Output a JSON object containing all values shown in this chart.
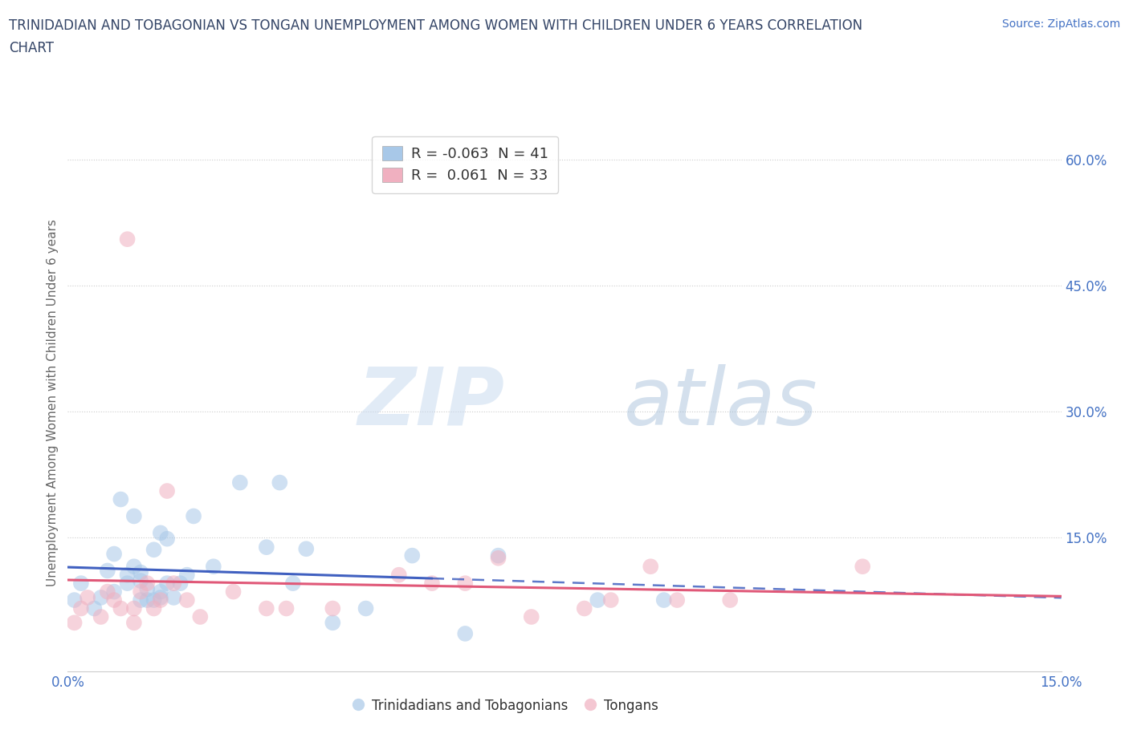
{
  "title_line1": "TRINIDADIAN AND TOBAGONIAN VS TONGAN UNEMPLOYMENT AMONG WOMEN WITH CHILDREN UNDER 6 YEARS CORRELATION",
  "title_line2": "CHART",
  "source_text": "Source: ZipAtlas.com",
  "ylabel": "Unemployment Among Women with Children Under 6 years",
  "xlim": [
    0.0,
    0.15
  ],
  "ylim": [
    -0.01,
    0.63
  ],
  "xtick_positions": [
    0.0,
    0.03,
    0.06,
    0.09,
    0.12,
    0.15
  ],
  "xtick_labels": [
    "0.0%",
    "",
    "",
    "",
    "",
    "15.0%"
  ],
  "ytick_positions": [
    0.0,
    0.15,
    0.3,
    0.45,
    0.6
  ],
  "ytick_labels": [
    "",
    "15.0%",
    "30.0%",
    "45.0%",
    "60.0%"
  ],
  "blue_scatter_color": "#a8c8e8",
  "pink_scatter_color": "#f0b0c0",
  "blue_line_color": "#4060c0",
  "pink_line_color": "#e05878",
  "R_blue": -0.063,
  "N_blue": 41,
  "R_pink": 0.061,
  "N_pink": 33,
  "blue_scatter_x": [
    0.001,
    0.002,
    0.004,
    0.005,
    0.006,
    0.007,
    0.007,
    0.008,
    0.009,
    0.009,
    0.01,
    0.01,
    0.011,
    0.011,
    0.011,
    0.012,
    0.012,
    0.013,
    0.013,
    0.014,
    0.014,
    0.014,
    0.015,
    0.015,
    0.016,
    0.017,
    0.018,
    0.019,
    0.022,
    0.026,
    0.03,
    0.032,
    0.034,
    0.036,
    0.04,
    0.045,
    0.052,
    0.06,
    0.065,
    0.08,
    0.09
  ],
  "blue_scatter_y": [
    0.075,
    0.095,
    0.065,
    0.078,
    0.11,
    0.085,
    0.13,
    0.195,
    0.095,
    0.105,
    0.115,
    0.175,
    0.075,
    0.098,
    0.108,
    0.075,
    0.088,
    0.135,
    0.075,
    0.078,
    0.155,
    0.085,
    0.095,
    0.148,
    0.078,
    0.095,
    0.105,
    0.175,
    0.115,
    0.215,
    0.138,
    0.215,
    0.095,
    0.136,
    0.048,
    0.065,
    0.128,
    0.035,
    0.128,
    0.075,
    0.075
  ],
  "pink_scatter_x": [
    0.001,
    0.002,
    0.003,
    0.005,
    0.006,
    0.007,
    0.008,
    0.009,
    0.01,
    0.01,
    0.011,
    0.012,
    0.013,
    0.014,
    0.015,
    0.016,
    0.018,
    0.02,
    0.025,
    0.03,
    0.033,
    0.04,
    0.05,
    0.055,
    0.06,
    0.065,
    0.07,
    0.078,
    0.082,
    0.088,
    0.092,
    0.1,
    0.12
  ],
  "pink_scatter_y": [
    0.048,
    0.065,
    0.078,
    0.055,
    0.085,
    0.075,
    0.065,
    0.505,
    0.048,
    0.065,
    0.085,
    0.095,
    0.065,
    0.075,
    0.205,
    0.095,
    0.075,
    0.055,
    0.085,
    0.065,
    0.065,
    0.065,
    0.105,
    0.095,
    0.095,
    0.125,
    0.055,
    0.065,
    0.075,
    0.115,
    0.075,
    0.075,
    0.115
  ],
  "watermark_zip": "ZIP",
  "watermark_atlas": "atlas",
  "background_color": "#ffffff",
  "grid_color": "#cccccc",
  "title_color": "#334466",
  "source_color": "#4472c4",
  "tick_color": "#4472c4",
  "ylabel_color": "#666666"
}
